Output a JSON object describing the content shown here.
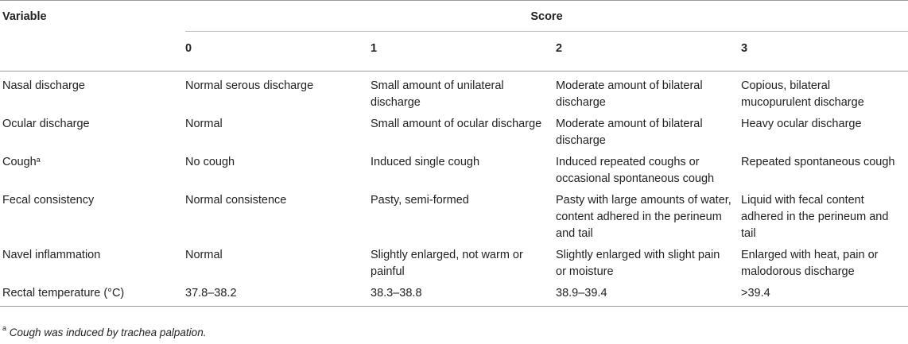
{
  "table": {
    "col_variable": "Variable",
    "col_score": "Score",
    "score_levels": [
      "0",
      "1",
      "2",
      "3"
    ],
    "rows": [
      {
        "variable": "Nasal discharge",
        "sup": "",
        "s0": "Normal serous discharge",
        "s1": "Small amount of unilateral discharge",
        "s2": "Moderate amount of bilateral discharge",
        "s3": "Copious, bilateral mucopurulent discharge"
      },
      {
        "variable": "Ocular discharge",
        "sup": "",
        "s0": "Normal",
        "s1": "Small amount of ocular discharge",
        "s2": "Moderate amount of bilateral discharge",
        "s3": "Heavy ocular discharge"
      },
      {
        "variable": "Cough",
        "sup": "a",
        "s0": "No cough",
        "s1": "Induced single cough",
        "s2": "Induced repeated coughs or occasional spontaneous cough",
        "s3": "Repeated spontaneous cough"
      },
      {
        "variable": "Fecal consistency",
        "sup": "",
        "s0": "Normal consistence",
        "s1": "Pasty, semi-formed",
        "s2": "Pasty with large amounts of water, content adhered in the perineum and tail",
        "s3": "Liquid with fecal content adhered in the perineum and tail"
      },
      {
        "variable": "Navel inflammation",
        "sup": "",
        "s0": "Normal",
        "s1": "Slightly enlarged, not warm or painful",
        "s2": "Slightly enlarged with slight pain or moisture",
        "s3": "Enlarged with heat, pain or malodorous discharge"
      },
      {
        "variable": "Rectal temperature (°C)",
        "sup": "",
        "s0": "37.8–38.2",
        "s1": "38.3–38.8",
        "s2": "38.9–39.4",
        "s3": ">39.4"
      }
    ]
  },
  "footnote": {
    "mark": "a",
    "text": "Cough was induced by trachea palpation."
  }
}
